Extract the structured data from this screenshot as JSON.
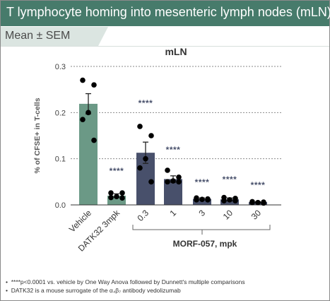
{
  "header": {
    "title": "T lymphocyte homing into mesenteric lymph nodes (mLN)",
    "stat_label": "Mean ± SEM"
  },
  "colors": {
    "title_bar": "#477b6b",
    "vehicle_bar": "#6b9986",
    "datk32_bar": "#6b9986",
    "morf_bar": "#48506b",
    "significance": "#48506b"
  },
  "chart_data": {
    "type": "bar",
    "title": "mLN",
    "xlabel": "",
    "ylabel": "% of CFSE+ in T-cells",
    "ylim": [
      0,
      0.3
    ],
    "yticks": [
      "0.0",
      "0.1",
      "0.2",
      "0.3"
    ],
    "grid": "horizontal dotted",
    "categories": [
      "Vehicle",
      "DATK32 3mpk",
      "0.3",
      "1",
      "3",
      "10",
      "30"
    ],
    "values": [
      0.219,
      0.02,
      0.113,
      0.056,
      0.013,
      0.012,
      0.006
    ],
    "sem": [
      0.022,
      0.004,
      0.023,
      0.007,
      0.002,
      0.003,
      0.001
    ],
    "points": [
      [
        0.27,
        0.26,
        0.2,
        0.185,
        0.14
      ],
      [
        0.026,
        0.026,
        0.018,
        0.016,
        0.015
      ],
      [
        0.17,
        0.15,
        0.1,
        0.08,
        0.05
      ],
      [
        0.075,
        0.06,
        0.052,
        0.05,
        0.05
      ],
      [
        0.015,
        0.013,
        0.012,
        0.011,
        0.011
      ],
      [
        0.016,
        0.014,
        0.011,
        0.009,
        0.009
      ],
      [
        0.007,
        0.006,
        0.005,
        0.005,
        0.004
      ]
    ],
    "significance": [
      "",
      "****",
      "****",
      "****",
      "****",
      "****",
      "****"
    ],
    "group_label": "MORF-057, mpk"
  },
  "footnotes": [
    "****p<0.0001 vs. vehicle by One Way Anova followed by Dunnett's multiple comparisons",
    "DATK32 is a mouse surrogate of the α₄β₇ antibody vedolizumab"
  ]
}
